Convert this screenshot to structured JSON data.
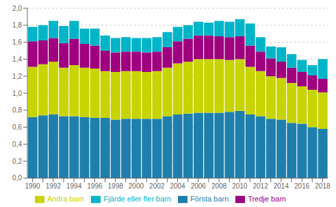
{
  "chart_data": {
    "type": "bar",
    "stacked": true,
    "grid": true,
    "legend": "bottom",
    "categories": [
      "1990",
      null,
      "1992",
      null,
      "1994",
      null,
      "1996",
      null,
      "1998",
      null,
      "2000",
      null,
      "2002",
      null,
      "2004",
      null,
      "2006",
      null,
      "2008",
      null,
      "2010",
      null,
      "2012",
      null,
      "2014",
      null,
      "2016",
      null,
      "2018"
    ],
    "series": [
      {
        "name": "Första barn",
        "color": "#1f7fac",
        "values": [
          0.72,
          0.74,
          0.75,
          0.73,
          0.73,
          0.72,
          0.71,
          0.71,
          0.69,
          0.7,
          0.7,
          0.7,
          0.7,
          0.73,
          0.75,
          0.76,
          0.77,
          0.77,
          0.77,
          0.78,
          0.79,
          0.75,
          0.73,
          0.7,
          0.69,
          0.65,
          0.64,
          0.6,
          0.58
        ]
      },
      {
        "name": "Andra barn",
        "color": "#c8d400",
        "values": [
          0.59,
          0.6,
          0.62,
          0.57,
          0.6,
          0.58,
          0.58,
          0.55,
          0.56,
          0.56,
          0.56,
          0.55,
          0.56,
          0.57,
          0.6,
          0.61,
          0.63,
          0.63,
          0.63,
          0.61,
          0.61,
          0.56,
          0.53,
          0.5,
          0.49,
          0.47,
          0.44,
          0.44,
          0.43
        ]
      },
      {
        "name": "Tredje barn",
        "color": "#9e007e",
        "values": [
          0.3,
          0.28,
          0.28,
          0.29,
          0.31,
          0.28,
          0.27,
          0.24,
          0.23,
          0.23,
          0.23,
          0.23,
          0.23,
          0.24,
          0.26,
          0.27,
          0.28,
          0.28,
          0.27,
          0.27,
          0.27,
          0.25,
          0.23,
          0.21,
          0.19,
          0.18,
          0.17,
          0.17,
          0.16
        ]
      },
      {
        "name": "Fjärde eller fler barn",
        "color": "#00b4c8",
        "values": [
          0.17,
          0.18,
          0.2,
          0.2,
          0.21,
          0.18,
          0.2,
          0.18,
          0.17,
          0.17,
          0.16,
          0.17,
          0.17,
          0.18,
          0.17,
          0.16,
          0.16,
          0.15,
          0.18,
          0.18,
          0.2,
          0.26,
          0.17,
          0.14,
          0.17,
          0.16,
          0.14,
          0.12,
          0.23
        ]
      }
    ],
    "ylim": [
      0,
      2.0
    ],
    "yticks": [
      {
        "value": 0.0,
        "label": "0,0"
      },
      {
        "value": 0.2,
        "label": "0,2"
      },
      {
        "value": 0.4,
        "label": "0,4"
      },
      {
        "value": 0.6,
        "label": "0,6"
      },
      {
        "value": 0.8,
        "label": "0,8"
      },
      {
        "value": 1.0,
        "label": "1,0"
      },
      {
        "value": 1.2,
        "label": "1,2"
      },
      {
        "value": 1.4,
        "label": "1,4"
      },
      {
        "value": 1.6,
        "label": "1,6"
      },
      {
        "value": 1.8,
        "label": "1,8"
      },
      {
        "value": 2.0,
        "label": "2,0"
      }
    ]
  }
}
